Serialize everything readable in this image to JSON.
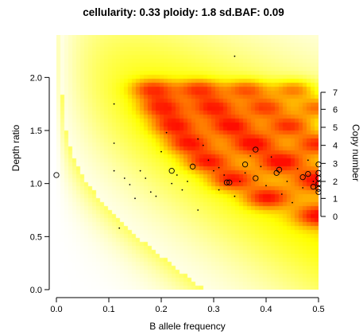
{
  "chart_data": {
    "type": "heatmap",
    "title": "cellularity: 0.33 ploidy: 1.8 sd.BAF: 0.09",
    "xlabel": "B allele frequency",
    "ylabel": "Depth ratio",
    "y2label": "Copy number",
    "xlim": [
      0,
      0.5
    ],
    "ylim": [
      0,
      2.4
    ],
    "x_ticks": [
      "0.0",
      "0.1",
      "0.2",
      "0.3",
      "0.4",
      "0.5"
    ],
    "y_ticks": [
      "0.0",
      "0.5",
      "1.0",
      "1.5",
      "2.0"
    ],
    "copy_number_axis": [
      {
        "label": "0",
        "ratio": 0.69
      },
      {
        "label": "1",
        "ratio": 0.86
      },
      {
        "label": "2",
        "ratio": 1.02
      },
      {
        "label": "3",
        "ratio": 1.19
      },
      {
        "label": "4",
        "ratio": 1.36
      },
      {
        "label": "5",
        "ratio": 1.53
      },
      {
        "label": "6",
        "ratio": 1.7
      },
      {
        "label": "7",
        "ratio": 1.86
      }
    ],
    "colors": {
      "low": "#ffffff",
      "mid": "#ffff00",
      "high": "#ff0000"
    },
    "segments_circles": [
      {
        "x": 0.0,
        "y": 1.08
      },
      {
        "x": 0.22,
        "y": 1.12
      },
      {
        "x": 0.26,
        "y": 1.16
      },
      {
        "x": 0.325,
        "y": 1.01
      },
      {
        "x": 0.33,
        "y": 1.01
      },
      {
        "x": 0.36,
        "y": 1.18
      },
      {
        "x": 0.38,
        "y": 1.32
      },
      {
        "x": 0.38,
        "y": 1.05
      },
      {
        "x": 0.42,
        "y": 1.1
      },
      {
        "x": 0.425,
        "y": 1.13
      },
      {
        "x": 0.47,
        "y": 1.06
      },
      {
        "x": 0.48,
        "y": 1.09
      },
      {
        "x": 0.49,
        "y": 0.97
      },
      {
        "x": 0.5,
        "y": 1.0
      },
      {
        "x": 0.5,
        "y": 0.95
      },
      {
        "x": 0.5,
        "y": 1.05
      },
      {
        "x": 0.5,
        "y": 1.1
      },
      {
        "x": 0.5,
        "y": 1.18
      },
      {
        "x": 0.5,
        "y": 0.92
      }
    ],
    "segments_dots": [
      {
        "x": 0.11,
        "y": 1.75
      },
      {
        "x": 0.12,
        "y": 0.58
      },
      {
        "x": 0.11,
        "y": 1.38
      },
      {
        "x": 0.11,
        "y": 1.12
      },
      {
        "x": 0.13,
        "y": 1.05
      },
      {
        "x": 0.14,
        "y": 0.99
      },
      {
        "x": 0.15,
        "y": 0.86
      },
      {
        "x": 0.16,
        "y": 1.12
      },
      {
        "x": 0.17,
        "y": 1.05
      },
      {
        "x": 0.18,
        "y": 0.92
      },
      {
        "x": 0.19,
        "y": 0.88
      },
      {
        "x": 0.2,
        "y": 1.3
      },
      {
        "x": 0.21,
        "y": 1.48
      },
      {
        "x": 0.22,
        "y": 1.0
      },
      {
        "x": 0.23,
        "y": 1.08
      },
      {
        "x": 0.24,
        "y": 0.94
      },
      {
        "x": 0.25,
        "y": 1.02
      },
      {
        "x": 0.27,
        "y": 1.42
      },
      {
        "x": 0.27,
        "y": 0.75
      },
      {
        "x": 0.28,
        "y": 1.36
      },
      {
        "x": 0.29,
        "y": 1.22
      },
      {
        "x": 0.3,
        "y": 1.12
      },
      {
        "x": 0.31,
        "y": 0.94
      },
      {
        "x": 0.32,
        "y": 1.08
      },
      {
        "x": 0.34,
        "y": 0.88
      },
      {
        "x": 0.34,
        "y": 2.2
      },
      {
        "x": 0.35,
        "y": 1.02
      },
      {
        "x": 0.37,
        "y": 1.26
      },
      {
        "x": 0.39,
        "y": 1.16
      },
      {
        "x": 0.4,
        "y": 0.98
      },
      {
        "x": 0.41,
        "y": 1.25
      },
      {
        "x": 0.43,
        "y": 0.9
      },
      {
        "x": 0.44,
        "y": 1.02
      },
      {
        "x": 0.45,
        "y": 0.82
      },
      {
        "x": 0.46,
        "y": 1.14
      },
      {
        "x": 0.47,
        "y": 0.96
      },
      {
        "x": 0.48,
        "y": 1.22
      },
      {
        "x": 0.49,
        "y": 1.02
      },
      {
        "x": 0.5,
        "y": 0.98
      },
      {
        "x": 0.5,
        "y": 1.02
      },
      {
        "x": 0.36,
        "y": 1.1
      },
      {
        "x": 0.31,
        "y": 1.15
      }
    ]
  }
}
